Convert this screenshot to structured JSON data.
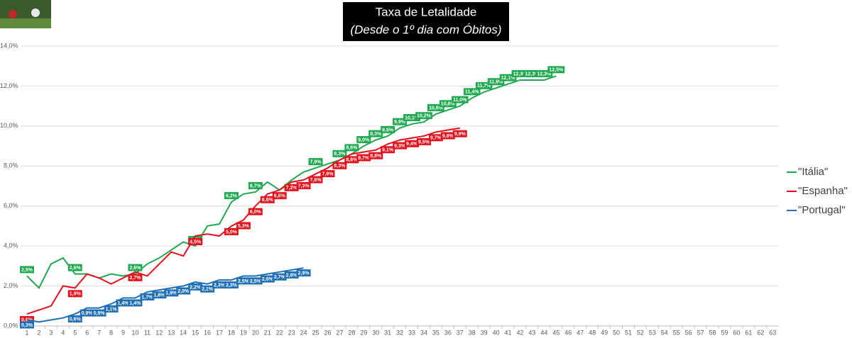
{
  "chart_data": {
    "type": "line",
    "title": "Taxa de Letalidade",
    "subtitle": "(Desde o 1º dia com Óbitos)",
    "categories": [
      1,
      2,
      3,
      4,
      5,
      6,
      7,
      8,
      9,
      10,
      11,
      12,
      13,
      14,
      15,
      16,
      17,
      18,
      19,
      20,
      21,
      22,
      23,
      24,
      25,
      26,
      27,
      28,
      29,
      30,
      31,
      32,
      33,
      34,
      35,
      36,
      37,
      38,
      39,
      40,
      41,
      42,
      43,
      44,
      45,
      46,
      47,
      48,
      49,
      50,
      51,
      52,
      53,
      54,
      55,
      56,
      57,
      58,
      59,
      60,
      61,
      62,
      63
    ],
    "ylim": [
      0,
      14
    ],
    "yticks": [
      {
        "value": 0,
        "label": "0,0%"
      },
      {
        "value": 2,
        "label": "2,0%"
      },
      {
        "value": 4,
        "label": "4,0%"
      },
      {
        "value": 6,
        "label": "6,0%"
      },
      {
        "value": 8,
        "label": "8,0%"
      },
      {
        "value": 10,
        "label": "10,0%"
      },
      {
        "value": 12,
        "label": "12,0%"
      },
      {
        "value": 14,
        "label": "14,0%"
      }
    ],
    "grid": true,
    "legend": "right",
    "series": [
      {
        "name": "\"Itália\"",
        "color": "#1fa84f",
        "values": [
          2.5,
          1.9,
          3.1,
          3.4,
          2.6,
          2.6,
          2.4,
          2.6,
          2.5,
          2.6,
          3.1,
          3.4,
          3.8,
          4.2,
          4.0,
          5.0,
          5.1,
          6.2,
          6.6,
          6.7,
          7.2,
          6.8,
          7.3,
          7.7,
          7.9,
          8.1,
          8.3,
          8.6,
          9.0,
          9.3,
          9.5,
          9.9,
          10.1,
          10.2,
          10.6,
          10.8,
          11.0,
          11.4,
          11.7,
          11.9,
          12.1,
          12.3,
          12.3,
          12.3,
          12.5,
          null,
          null,
          null,
          null,
          null,
          null,
          null,
          null,
          null,
          null,
          null,
          null,
          null,
          null,
          null,
          null,
          null,
          null
        ],
        "value_labels": [
          "2,5%",
          null,
          null,
          null,
          "2,6%",
          null,
          null,
          null,
          null,
          "2,6%",
          null,
          null,
          null,
          null,
          "4,0%",
          null,
          null,
          "6,2%",
          null,
          "6,7%",
          null,
          null,
          null,
          null,
          "7,9%",
          null,
          "8,3%",
          "8,6%",
          "9,0%",
          "9,3%",
          "9,5%",
          "9,9%",
          "10,1%",
          "10,2%",
          "10,6%",
          "10,8%",
          "11,0%",
          "11,4%",
          "11,7%",
          "11,9%",
          "12,1%",
          "12,3%",
          "12,3%",
          "12,3%",
          "12,5%",
          null,
          null,
          null,
          null,
          null,
          null,
          null,
          null,
          null,
          null,
          null,
          null,
          null,
          null,
          null,
          null,
          null,
          null
        ]
      },
      {
        "name": "\"Espanha\"",
        "color": "#e3101b",
        "values": [
          0.6,
          0.8,
          1.0,
          2.0,
          1.9,
          2.6,
          2.4,
          2.1,
          2.4,
          2.7,
          2.5,
          3.1,
          3.7,
          3.5,
          4.5,
          4.6,
          4.5,
          5.0,
          5.3,
          6.0,
          6.6,
          6.8,
          7.2,
          7.3,
          7.6,
          7.9,
          8.3,
          8.6,
          8.7,
          8.8,
          9.1,
          9.3,
          9.4,
          9.5,
          9.7,
          9.8,
          9.9,
          null,
          null,
          null,
          null,
          null,
          null,
          null,
          null,
          null,
          null,
          null,
          null,
          null,
          null,
          null,
          null,
          null,
          null,
          null,
          null,
          null,
          null,
          null,
          null,
          null,
          null
        ],
        "value_labels": [
          "0,6%",
          null,
          null,
          null,
          "1,9%",
          null,
          null,
          null,
          null,
          "2,7%",
          null,
          null,
          null,
          null,
          "4,5%",
          null,
          null,
          "5,0%",
          "5,3%",
          "6,0%",
          "6,6%",
          "6,8%",
          "7,2%",
          "7,3%",
          "7,6%",
          "7,9%",
          "8,3%",
          "8,6%",
          "8,7%",
          "8,8%",
          "9,1%",
          "9,3%",
          "9,4%",
          "9,5%",
          "9,7%",
          "9,8%",
          "9,9%",
          null,
          null,
          null,
          null,
          null,
          null,
          null,
          null,
          null,
          null,
          null,
          null,
          null,
          null,
          null,
          null,
          null,
          null,
          null,
          null,
          null,
          null,
          null,
          null,
          null,
          null
        ]
      },
      {
        "name": "\"Portugal\"",
        "color": "#1f6fb5",
        "values": [
          0.3,
          0.2,
          0.3,
          0.4,
          0.6,
          0.9,
          0.9,
          1.1,
          1.4,
          1.4,
          1.7,
          1.8,
          1.9,
          2.0,
          2.2,
          2.1,
          2.3,
          2.3,
          2.5,
          2.5,
          2.6,
          2.7,
          2.8,
          2.9,
          null,
          null,
          null,
          null,
          null,
          null,
          null,
          null,
          null,
          null,
          null,
          null,
          null,
          null,
          null,
          null,
          null,
          null,
          null,
          null,
          null,
          null,
          null,
          null,
          null,
          null,
          null,
          null,
          null,
          null,
          null,
          null,
          null,
          null,
          null,
          null,
          null,
          null,
          null
        ],
        "value_labels": [
          "0,3%",
          null,
          null,
          null,
          "0,6%",
          "0,9%",
          "0,9%",
          "1,1%",
          "1,4%",
          "1,4%",
          "1,7%",
          "1,8%",
          "1,9%",
          "2,0%",
          "2,2%",
          "2,1%",
          "2,3%",
          "2,3%",
          "2,5%",
          "2,5%",
          "2,6%",
          "2,7%",
          "2,8%",
          "2,9%",
          null,
          null,
          null,
          null,
          null,
          null,
          null,
          null,
          null,
          null,
          null,
          null,
          null,
          null,
          null,
          null,
          null,
          null,
          null,
          null,
          null,
          null,
          null,
          null,
          null,
          null,
          null,
          null,
          null,
          null,
          null,
          null,
          null,
          null,
          null,
          null,
          null,
          null,
          null
        ]
      }
    ]
  }
}
